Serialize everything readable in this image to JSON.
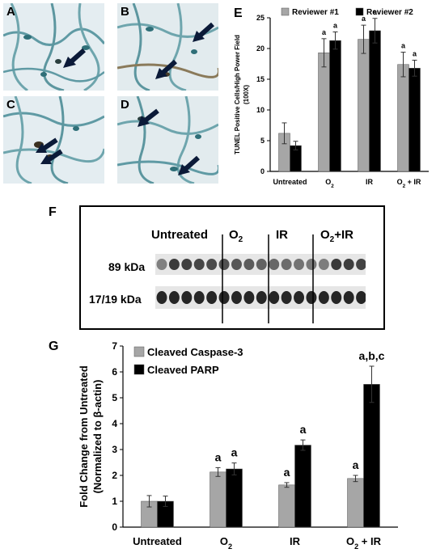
{
  "panels": {
    "A": "A",
    "B": "B",
    "C": "C",
    "D": "D",
    "E": "E",
    "F": "F",
    "G": "G"
  },
  "micrographs": [
    {
      "tag": "A"
    },
    {
      "tag": "B"
    },
    {
      "tag": "C"
    },
    {
      "tag": "D"
    }
  ],
  "western_blot": {
    "lanes": [
      "Untreated",
      "O2",
      "IR",
      "O2+IR"
    ],
    "lanes_display": [
      "Untreated",
      "O",
      "IR",
      "O"
    ],
    "lanes_suffix": [
      "",
      "2",
      "",
      "2"
    ],
    "lanes_tail": [
      "",
      "",
      "",
      "+IR"
    ],
    "bands": [
      "89 kDa",
      "17/19 kDa"
    ]
  },
  "chart_data": [
    {
      "id": "E",
      "type": "bar",
      "ylabel_lines": [
        "TUNEL Positive Cells/High Power Field",
        "(100X)"
      ],
      "xlabel": "",
      "ylim": [
        0,
        25
      ],
      "yticks": [
        0,
        5,
        10,
        15,
        20,
        25
      ],
      "categories": [
        "Untreated",
        "O2",
        "IR",
        "O2 + IR"
      ],
      "legend_placement": "top",
      "grid": false,
      "series": [
        {
          "name": "Reviewer #1",
          "color": "#a6a6a6",
          "values": [
            6.2,
            19.3,
            21.5,
            17.4
          ],
          "errors": [
            1.7,
            2.3,
            2.3,
            2.0
          ]
        },
        {
          "name": "Reviewer #2",
          "color": "#000000",
          "values": [
            4.2,
            21.3,
            22.9,
            16.8
          ],
          "errors": [
            0.7,
            1.4,
            2.0,
            1.3
          ]
        }
      ],
      "annotations": [
        {
          "category": 1,
          "series": 0,
          "text": "a"
        },
        {
          "category": 1,
          "series": 1,
          "text": "a"
        },
        {
          "category": 2,
          "series": 0,
          "text": "a"
        },
        {
          "category": 2,
          "series": 1,
          "text": "a"
        },
        {
          "category": 3,
          "series": 0,
          "text": "a"
        },
        {
          "category": 3,
          "series": 1,
          "text": "a"
        }
      ]
    },
    {
      "id": "G",
      "type": "bar",
      "ylabel_lines": [
        "Fold Change from Untreated",
        "(Normalized to β-actin)"
      ],
      "xlabel": "",
      "ylim": [
        0,
        7
      ],
      "yticks": [
        0,
        1,
        2,
        3,
        4,
        5,
        6,
        7
      ],
      "categories": [
        "Untreated",
        "O2",
        "IR",
        "O2 + IR"
      ],
      "legend_placement": "top-left",
      "grid": false,
      "series": [
        {
          "name": "Cleaved Caspase-3",
          "color": "#a6a6a6",
          "values": [
            1.0,
            2.13,
            1.63,
            1.88
          ],
          "errors": [
            0.22,
            0.17,
            0.09,
            0.12
          ]
        },
        {
          "name": "Cleaved PARP",
          "color": "#000000",
          "values": [
            1.0,
            2.25,
            3.17,
            5.52
          ],
          "errors": [
            0.2,
            0.23,
            0.2,
            0.7
          ]
        }
      ],
      "annotations": [
        {
          "category": 1,
          "series": 0,
          "text": "a"
        },
        {
          "category": 1,
          "series": 1,
          "text": "a"
        },
        {
          "category": 2,
          "series": 0,
          "text": "a"
        },
        {
          "category": 2,
          "series": 1,
          "text": "a"
        },
        {
          "category": 3,
          "series": 0,
          "text": "a"
        },
        {
          "category": 3,
          "series": 1,
          "text": "a,b,c"
        }
      ]
    }
  ]
}
